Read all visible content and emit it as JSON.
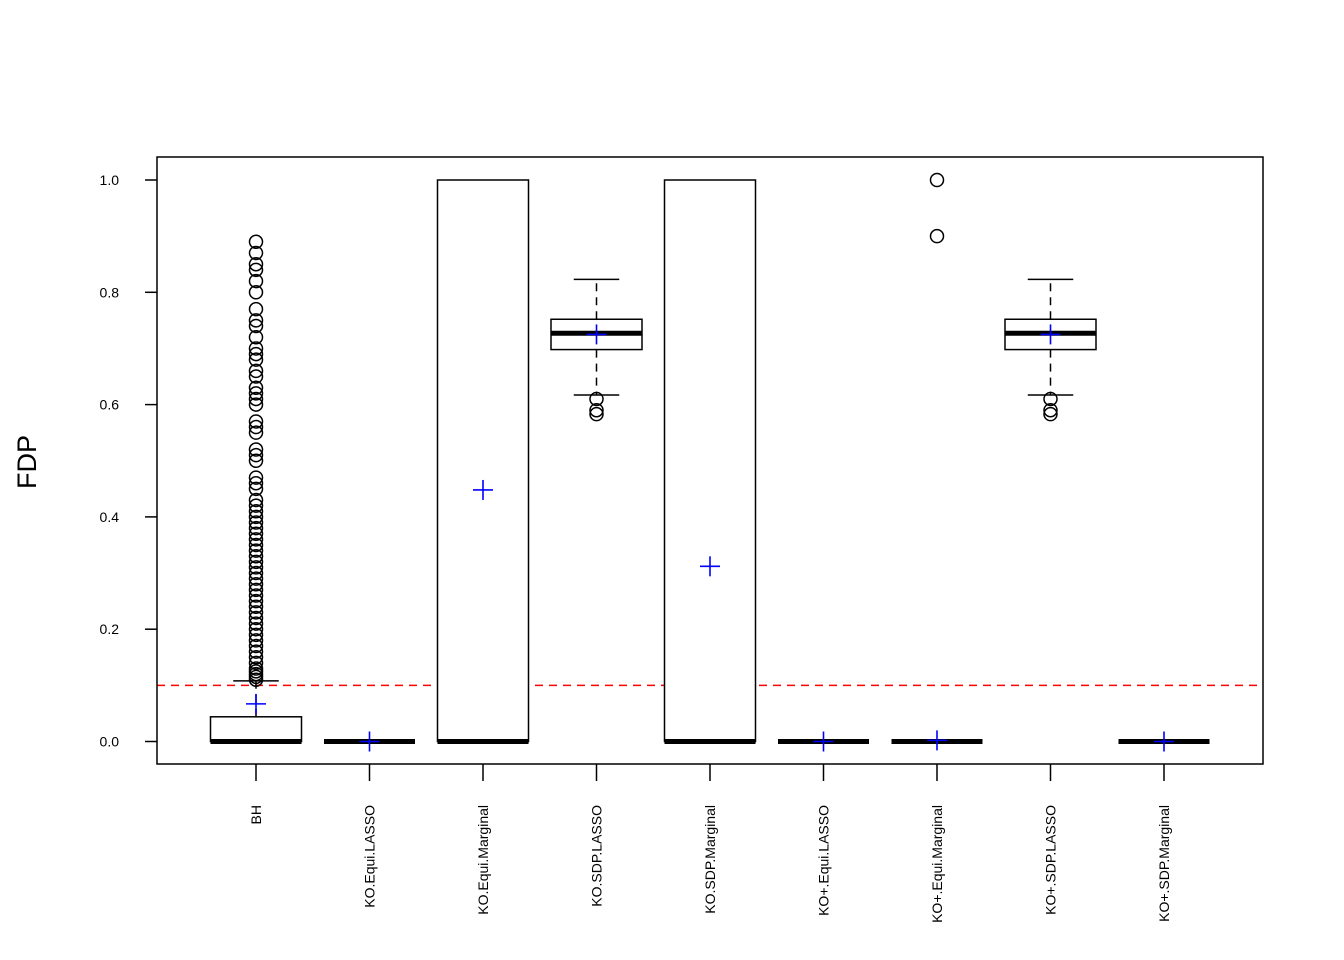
{
  "chart_data": {
    "type": "box",
    "title": "",
    "xlabel": "",
    "ylabel": "FDP",
    "ylim": [
      -0.04,
      1.04
    ],
    "yticks": [
      "0.0",
      "0.2",
      "0.4",
      "0.6",
      "0.8",
      "1.0"
    ],
    "ytick_values": [
      0.0,
      0.2,
      0.4,
      0.6,
      0.8,
      1.0
    ],
    "reference_line": {
      "y": 0.1,
      "color": "#ff0000",
      "style": "dashed"
    },
    "mean_marker_color": "#0000ff",
    "categories": [
      "BH",
      "KO.Equi.LASSO",
      "KO.Equi.Marginal",
      "KO.SDP.LASSO",
      "KO.SDP.Marginal",
      "KO+.Equi.LASSO",
      "KO+.Equi.Marginal",
      "KO+.SDP.LASSO",
      "KO+.SDP.Marginal"
    ],
    "series": [
      {
        "name": "BH",
        "min": 0.0,
        "q1": 0.0,
        "median": 0.0,
        "q3": 0.044,
        "max": 0.108,
        "mean": 0.067,
        "outliers": [
          0.11,
          0.115,
          0.12,
          0.125,
          0.13,
          0.14,
          0.15,
          0.16,
          0.17,
          0.18,
          0.19,
          0.2,
          0.21,
          0.22,
          0.23,
          0.24,
          0.25,
          0.26,
          0.27,
          0.28,
          0.29,
          0.3,
          0.31,
          0.32,
          0.33,
          0.34,
          0.35,
          0.36,
          0.37,
          0.38,
          0.39,
          0.4,
          0.41,
          0.42,
          0.43,
          0.45,
          0.46,
          0.47,
          0.5,
          0.51,
          0.52,
          0.55,
          0.56,
          0.57,
          0.6,
          0.61,
          0.62,
          0.63,
          0.65,
          0.66,
          0.68,
          0.69,
          0.7,
          0.72,
          0.74,
          0.75,
          0.77,
          0.8,
          0.82,
          0.84,
          0.85,
          0.87,
          0.89
        ]
      },
      {
        "name": "KO.Equi.LASSO",
        "min": 0.0,
        "q1": 0.0,
        "median": 0.0,
        "q3": 0.0,
        "max": 0.0,
        "mean": 0.0,
        "outliers": []
      },
      {
        "name": "KO.Equi.Marginal",
        "min": 0.0,
        "q1": 0.0,
        "median": 0.0,
        "q3": 1.0,
        "max": 1.0,
        "mean": 0.448,
        "outliers": []
      },
      {
        "name": "KO.SDP.LASSO",
        "min": 0.617,
        "q1": 0.698,
        "median": 0.727,
        "q3": 0.752,
        "max": 0.823,
        "mean": 0.725,
        "outliers": [
          0.583,
          0.59,
          0.61
        ]
      },
      {
        "name": "KO.SDP.Marginal",
        "min": 0.0,
        "q1": 0.0,
        "median": 0.0,
        "q3": 1.0,
        "max": 1.0,
        "mean": 0.312,
        "outliers": []
      },
      {
        "name": "KO+.Equi.LASSO",
        "min": 0.0,
        "q1": 0.0,
        "median": 0.0,
        "q3": 0.0,
        "max": 0.0,
        "mean": 0.0,
        "outliers": []
      },
      {
        "name": "KO+.Equi.Marginal",
        "min": 0.0,
        "q1": 0.0,
        "median": 0.0,
        "q3": 0.0,
        "max": 0.0,
        "mean": 0.002,
        "outliers": [
          0.9,
          1.0
        ]
      },
      {
        "name": "KO+.SDP.LASSO",
        "min": 0.617,
        "q1": 0.698,
        "median": 0.727,
        "q3": 0.752,
        "max": 0.823,
        "mean": 0.725,
        "outliers": [
          0.583,
          0.59,
          0.61
        ]
      },
      {
        "name": "KO+.SDP.Marginal",
        "min": 0.0,
        "q1": 0.0,
        "median": 0.0,
        "q3": 0.0,
        "max": 0.0,
        "mean": 0.0,
        "outliers": []
      }
    ]
  }
}
